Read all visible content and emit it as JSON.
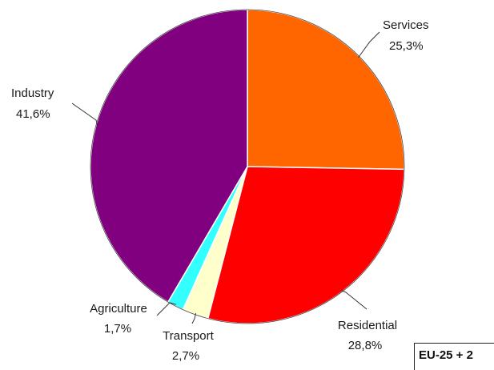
{
  "chart_data": {
    "type": "pie",
    "categories": [
      "Services",
      "Residential",
      "Transport",
      "Agriculture",
      "Industry"
    ],
    "values": [
      25.3,
      28.8,
      2.7,
      1.7,
      41.6
    ],
    "value_labels": [
      "25,3%",
      "28,8%",
      "2,7%",
      "1,7%",
      "41,6%"
    ],
    "colors": [
      "#ff6600",
      "#ff0000",
      "#ffffcc",
      "#33ffff",
      "#800080"
    ],
    "start_angle_deg": 0,
    "direction": "clockwise",
    "legend": "none",
    "title": ""
  },
  "region_label": "EU-25 + 2"
}
